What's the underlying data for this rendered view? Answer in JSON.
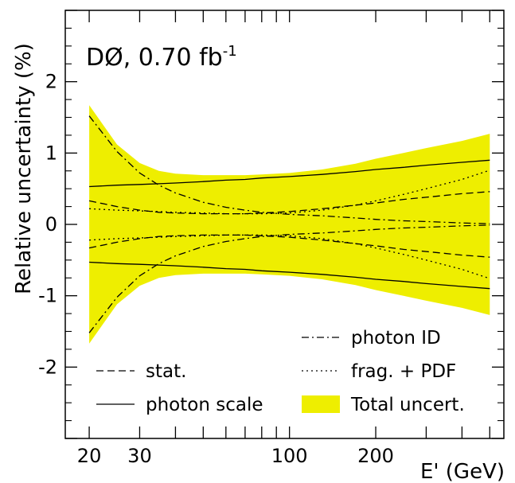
{
  "chart_data": {
    "type": "line",
    "title": "",
    "annotation": {
      "text": "DØ, 0.70 fb",
      "superscript": "-1"
    },
    "xlabel": "E' (GeV)",
    "ylabel": "Relative uncertainty (%)",
    "x_scale": "log",
    "xlim": [
      16.5,
      560
    ],
    "ylim": [
      -3.0,
      3.0
    ],
    "x_tick_labels": [
      {
        "value": 20,
        "label": "20"
      },
      {
        "value": 30,
        "label": "30"
      },
      {
        "value": 100,
        "label": "100"
      },
      {
        "value": 200,
        "label": "200"
      }
    ],
    "y_tick_labels": [
      {
        "value": 2,
        "label": "2"
      },
      {
        "value": 1,
        "label": "1"
      },
      {
        "value": 0,
        "label": "0"
      },
      {
        "value": -1,
        "label": "-1"
      },
      {
        "value": -2,
        "label": "-2"
      }
    ],
    "x_major_ticks": [
      20,
      30,
      40,
      50,
      60,
      70,
      80,
      90,
      100,
      200,
      300,
      400,
      500
    ],
    "y_major_ticks": [
      -3,
      -2,
      -1,
      0,
      1,
      2,
      3
    ],
    "y_minor_ticks": [
      -2.75,
      -2.5,
      -2.25,
      -1.75,
      -1.5,
      -1.25,
      -0.75,
      -0.5,
      -0.25,
      0.25,
      0.5,
      0.75,
      1.25,
      1.5,
      1.75,
      2.25,
      2.5,
      2.75
    ],
    "x": [
      20,
      25,
      30,
      35,
      40,
      50,
      60,
      70,
      80,
      100,
      130,
      170,
      200,
      250,
      300,
      400,
      500
    ],
    "band": {
      "name": "Total uncert.",
      "color": "#eeee00",
      "upper": [
        1.67,
        1.12,
        0.86,
        0.75,
        0.71,
        0.69,
        0.69,
        0.69,
        0.7,
        0.72,
        0.77,
        0.85,
        0.92,
        1.0,
        1.07,
        1.17,
        1.27
      ],
      "lower": [
        -1.67,
        -1.12,
        -0.86,
        -0.75,
        -0.71,
        -0.69,
        -0.69,
        -0.69,
        -0.7,
        -0.72,
        -0.77,
        -0.85,
        -0.92,
        -1.0,
        -1.07,
        -1.17,
        -1.27
      ]
    },
    "series": [
      {
        "name": "photon scale",
        "dash": "solid",
        "upper": [
          0.53,
          0.55,
          0.56,
          0.57,
          0.58,
          0.6,
          0.62,
          0.63,
          0.65,
          0.67,
          0.7,
          0.74,
          0.77,
          0.8,
          0.83,
          0.87,
          0.9
        ],
        "lower": [
          -0.53,
          -0.55,
          -0.56,
          -0.57,
          -0.58,
          -0.6,
          -0.62,
          -0.63,
          -0.65,
          -0.67,
          -0.7,
          -0.74,
          -0.77,
          -0.8,
          -0.83,
          -0.87,
          -0.9
        ]
      },
      {
        "name": "stat.",
        "dash": "dashed",
        "upper": [
          0.33,
          0.25,
          0.2,
          0.17,
          0.16,
          0.15,
          0.15,
          0.15,
          0.16,
          0.18,
          0.22,
          0.27,
          0.3,
          0.35,
          0.38,
          0.43,
          0.46
        ],
        "lower": [
          -0.33,
          -0.25,
          -0.2,
          -0.17,
          -0.16,
          -0.15,
          -0.15,
          -0.15,
          -0.16,
          -0.18,
          -0.22,
          -0.27,
          -0.3,
          -0.35,
          -0.38,
          -0.43,
          -0.46
        ]
      },
      {
        "name": "photon ID",
        "dash": "dashdot",
        "upper": [
          1.52,
          1.02,
          0.72,
          0.55,
          0.44,
          0.31,
          0.24,
          0.2,
          0.17,
          0.14,
          0.12,
          0.09,
          0.07,
          0.05,
          0.04,
          0.02,
          0.01
        ],
        "lower": [
          -1.52,
          -1.02,
          -0.72,
          -0.55,
          -0.44,
          -0.31,
          -0.24,
          -0.2,
          -0.17,
          -0.14,
          -0.12,
          -0.09,
          -0.07,
          -0.05,
          -0.04,
          -0.02,
          -0.01
        ]
      },
      {
        "name": "frag. + PDF",
        "dash": "dotted",
        "upper": [
          0.22,
          0.2,
          0.19,
          0.18,
          0.17,
          0.16,
          0.15,
          0.15,
          0.15,
          0.16,
          0.2,
          0.27,
          0.33,
          0.42,
          0.5,
          0.63,
          0.76
        ],
        "lower": [
          -0.22,
          -0.2,
          -0.19,
          -0.18,
          -0.17,
          -0.16,
          -0.15,
          -0.15,
          -0.15,
          -0.16,
          -0.2,
          -0.27,
          -0.33,
          -0.42,
          -0.5,
          -0.63,
          -0.76
        ]
      }
    ],
    "legend_order": [
      "photon ID",
      "stat.",
      "frag. + PDF",
      "photon scale",
      "Total uncert."
    ],
    "legend_placement": "bottom",
    "grid": false
  }
}
